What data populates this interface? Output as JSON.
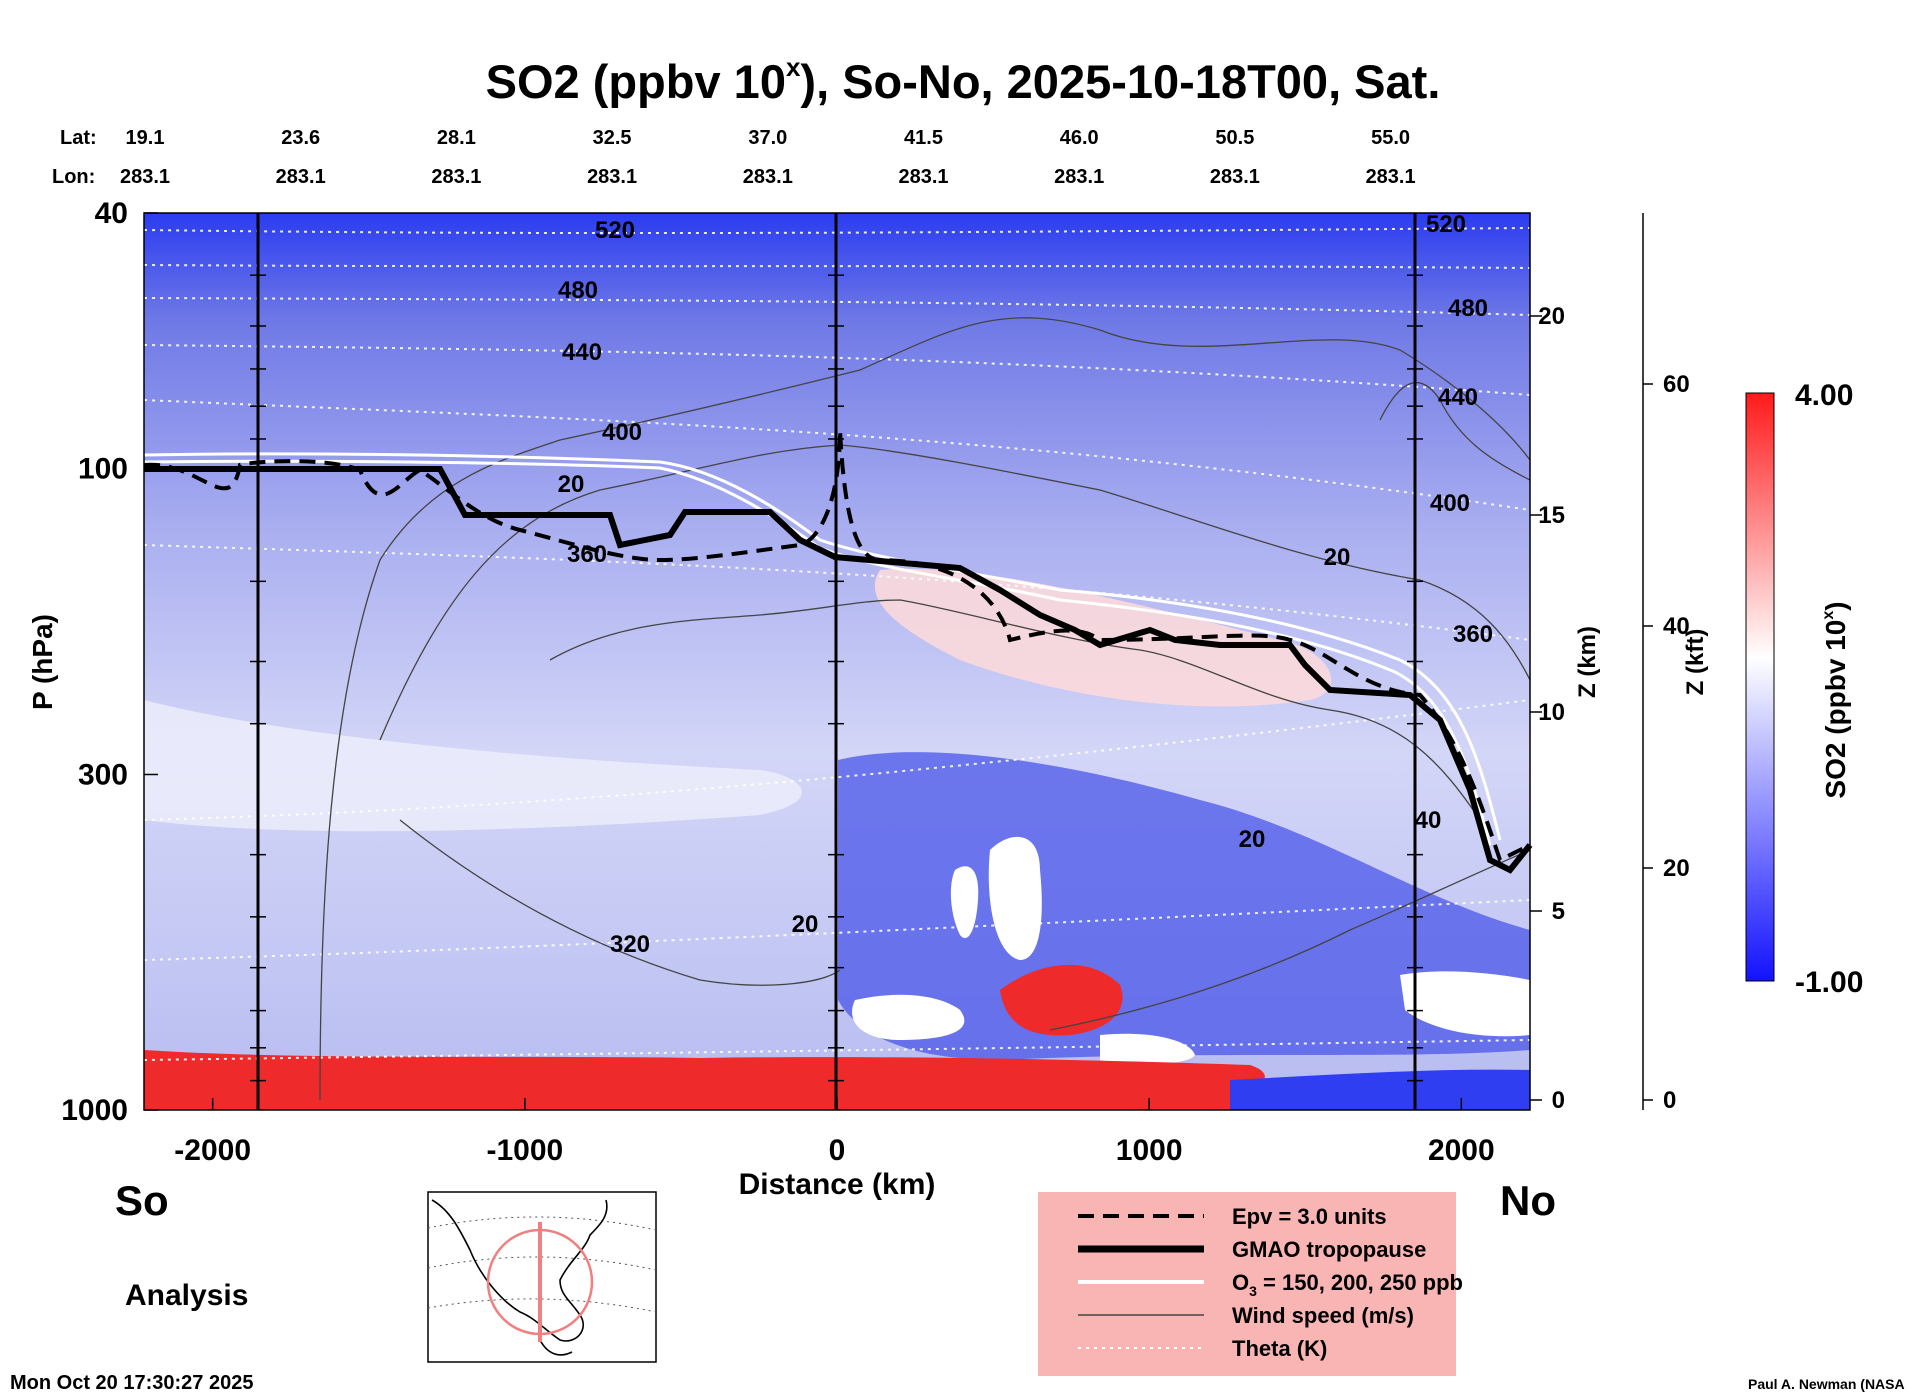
{
  "chart_data": {
    "type": "heatmap",
    "title_main": "SO2 (ppbv 10",
    "title_sup": "x",
    "title_rest": "), So-No, 2025-10-18T00, Sat.",
    "lat_label": "Lat:",
    "lon_label": "Lon:",
    "lats": [
      "19.1",
      "23.6",
      "28.1",
      "32.5",
      "37.0",
      "41.5",
      "46.0",
      "50.5",
      "55.0"
    ],
    "lons": [
      "283.1",
      "283.1",
      "283.1",
      "283.1",
      "283.1",
      "283.1",
      "283.1",
      "283.1",
      "283.1"
    ],
    "xlabel": "Distance (km)",
    "xlim": [
      -2220,
      2220
    ],
    "x_ticks": [
      "-2000",
      "-1000",
      "0",
      "1000",
      "2000"
    ],
    "ylabel": "P (hPa)",
    "y_ticks": [
      "40",
      "100",
      "300",
      "1000"
    ],
    "z_km_label": "Z (km)",
    "z_km_ticks": [
      "0",
      "5",
      "10",
      "15",
      "20"
    ],
    "z_kft_label": "Z (kft)",
    "z_kft_ticks": [
      "0",
      "20",
      "40",
      "60"
    ],
    "colorbar": {
      "label": "SO2 (ppbv 10",
      "label_sup": "x",
      "label_end": ")",
      "max": "4.00",
      "min": "-1.00"
    },
    "theta_labels": [
      "520",
      "480",
      "440",
      "400",
      "360",
      "320",
      "520",
      "480",
      "440",
      "400",
      "360"
    ],
    "wind_labels": [
      "20",
      "20",
      "20",
      "20",
      "40"
    ],
    "left_end": "So",
    "right_end": "No",
    "mode": "Analysis",
    "timestamp": "Mon Oct 20 17:30:27 2025",
    "credit": "Paul A. Newman (NASA",
    "legend": [
      {
        "name": "Epv = 3.0 units",
        "style": "dashed"
      },
      {
        "name": "GMAO tropopause",
        "style": "thick"
      },
      {
        "name": "O3 = 150, 200, 250 ppb",
        "style": "white"
      },
      {
        "name": "Wind speed (m/s)",
        "style": "thin"
      },
      {
        "name": "Theta (K)",
        "style": "dotted"
      }
    ],
    "legend_o3_a": "O",
    "legend_o3_sub": "3",
    "legend_o3_b": " = 150, 200, 250 ppb",
    "colors": {
      "high": "#ff1a1a",
      "mid": "#ffffff",
      "low": "#1a1aff",
      "legend_bg": "#f9b4b4"
    }
  }
}
